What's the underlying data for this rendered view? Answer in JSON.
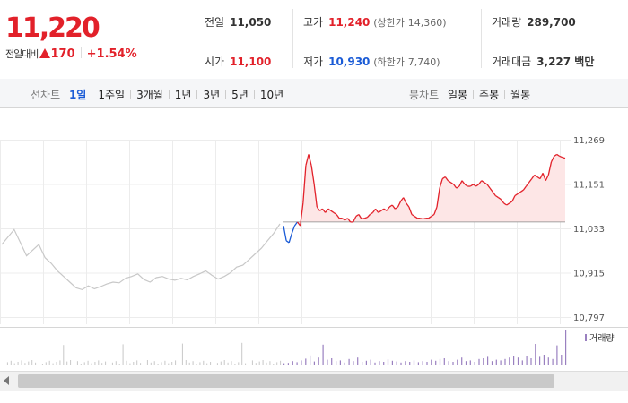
{
  "quote": {
    "price": "11,220",
    "change_label": "전일대비",
    "change": "170",
    "change_pct": "+1.54%",
    "prev_close_label": "전일",
    "prev_close": "11,050",
    "high_label": "고가",
    "high": "11,240",
    "upper_limit_label": "(상한가",
    "upper_limit": "14,360)",
    "volume_label": "거래량",
    "volume": "289,700",
    "open_label": "시가",
    "open": "11,100",
    "low_label": "저가",
    "low": "10,930",
    "lower_limit_label": "(하한가",
    "lower_limit": "7,740)",
    "turnover_label": "거래대금",
    "turnover": "3,227 백만"
  },
  "toolbar": {
    "line_label": "선차트",
    "periods": [
      "1일",
      "1주일",
      "3개월",
      "1년",
      "3년",
      "5년",
      "10년"
    ],
    "active_period": "1일",
    "candle_label": "봉차트",
    "candles": [
      "일봉",
      "주봉",
      "월봉"
    ]
  },
  "colors": {
    "up": "#e2212a",
    "down": "#1a5bd6",
    "prev_day": "#c8c8c8",
    "fill": "#fde6e6",
    "volume": "#9a80c0"
  },
  "chart_data": {
    "type": "line",
    "ylim": [
      10797,
      11269
    ],
    "yticks": [
      "11,269",
      "11,151",
      "11,033",
      "10,915",
      "10,797"
    ],
    "baseline": 11050,
    "series": [
      {
        "values": [
          10990,
          11010,
          11030,
          10995,
          10960,
          10975,
          10990,
          10955,
          10940,
          10920,
          10905,
          10890,
          10875,
          10870,
          10880,
          10872,
          10878,
          10885,
          10890,
          10888,
          10900,
          10905,
          10912,
          10897,
          10890,
          10902,
          10905,
          10898,
          10895,
          10900,
          10896,
          10905,
          10912,
          10920,
          10908,
          10898,
          10905,
          10915,
          10930,
          10935,
          10950,
          10965,
          10980,
          11000,
          11020,
          11045
        ]
      },
      {
        "values": [
          11040,
          11000,
          10995,
          11020,
          11040,
          11050,
          11040,
          11100,
          11200,
          11230,
          11200,
          11150,
          11090,
          11080,
          11085,
          11075,
          11085,
          11080,
          11075,
          11070,
          11060,
          11060,
          11055,
          11060,
          11050,
          11050,
          11065,
          11070,
          11058,
          11060,
          11062,
          11070,
          11075,
          11085,
          11075,
          11080,
          11085,
          11080,
          11090,
          11095,
          11085,
          11090,
          11105,
          11115,
          11100,
          11090,
          11070,
          11065,
          11060,
          11060,
          11058,
          11060,
          11060,
          11065,
          11070,
          11090,
          11140,
          11165,
          11170,
          11160,
          11155,
          11150,
          11140,
          11145,
          11160,
          11150,
          11145,
          11145,
          11150,
          11145,
          11150,
          11160,
          11155,
          11150,
          11140,
          11130,
          11120,
          11115,
          11110,
          11100,
          11095,
          11100,
          11105,
          11120,
          11125,
          11130,
          11135,
          11145,
          11155,
          11165,
          11175,
          11170,
          11165,
          11180,
          11160,
          11175,
          11210,
          11225,
          11230,
          11225,
          11222,
          11220
        ]
      }
    ],
    "volume_label": "거래량",
    "volume_rel": [
      0.06,
      0.07,
      0.12,
      0.09,
      0.14,
      0.19,
      0.28,
      0.11,
      0.22,
      0.58,
      0.16,
      0.2,
      0.12,
      0.14,
      0.08,
      0.18,
      0.12,
      0.22,
      0.1,
      0.13,
      0.16,
      0.08,
      0.12,
      0.1,
      0.17,
      0.13,
      0.11,
      0.08,
      0.12,
      0.1,
      0.14,
      0.09,
      0.12,
      0.1,
      0.16,
      0.13,
      0.18,
      0.2,
      0.12,
      0.1,
      0.16,
      0.22,
      0.12,
      0.14,
      0.1,
      0.18,
      0.2,
      0.24,
      0.12,
      0.16,
      0.14,
      0.18,
      0.22,
      0.26,
      0.22,
      0.14,
      0.26,
      0.2,
      0.6,
      0.24,
      0.3,
      0.22,
      0.18,
      0.56,
      0.3,
      1.0
    ]
  }
}
